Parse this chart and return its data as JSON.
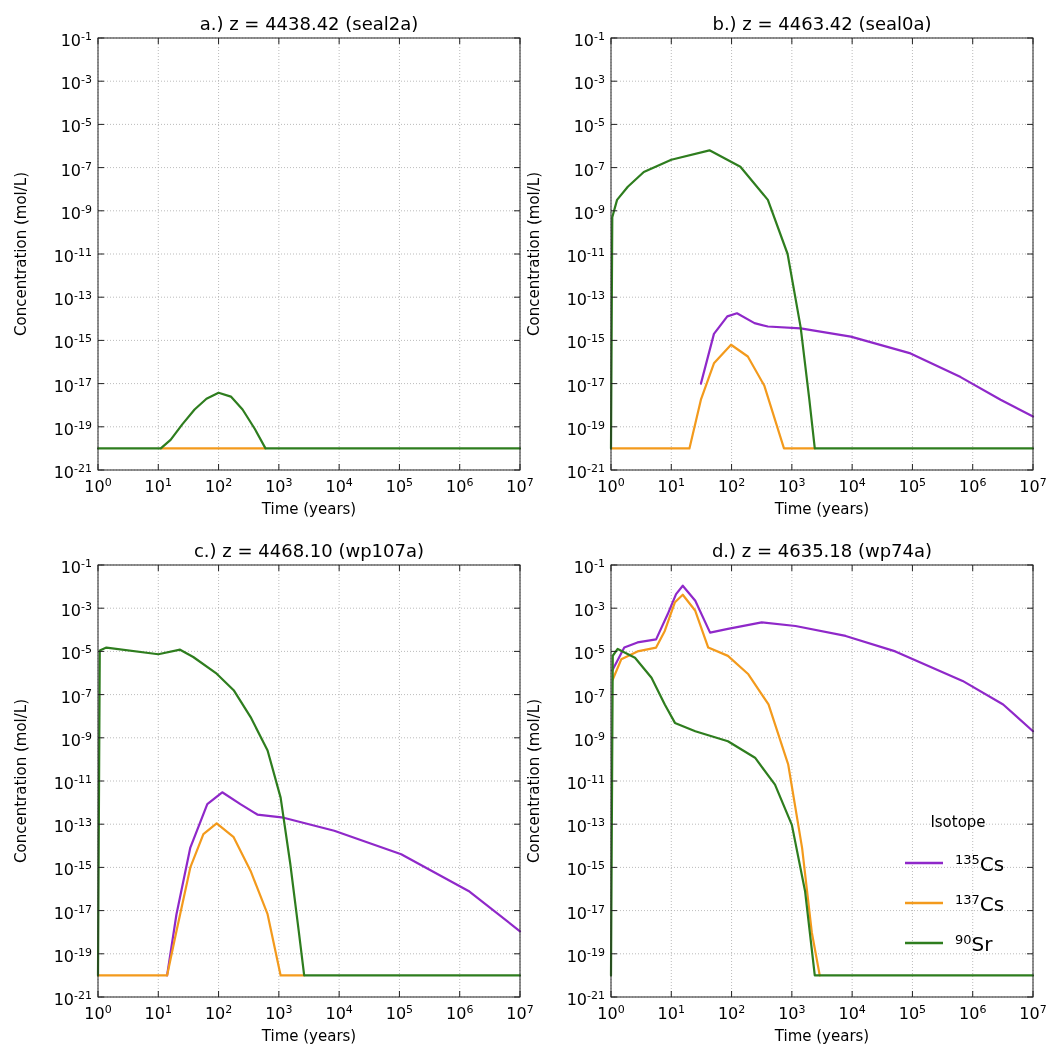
{
  "chart_data": [
    {
      "type": "line",
      "title": "a.) z = 4438.42 (seal2a)",
      "xlabel": "Time (years)",
      "ylabel": "Concentration (mol/L)",
      "log": "xy",
      "grid": true,
      "xlim": [
        1,
        10000000
      ],
      "ylim": [
        1e-21,
        0.1
      ],
      "xticks": [
        {
          "value": 1,
          "label": "10$^{0}$"
        },
        {
          "value": 10,
          "label": "10$^{1}$"
        },
        {
          "value": 100,
          "label": "10$^{2}$"
        },
        {
          "value": 1000,
          "label": "10$^{3}$"
        },
        {
          "value": 10000,
          "label": "10$^{4}$"
        },
        {
          "value": 100000,
          "label": "10$^{5}$"
        },
        {
          "value": 1000000,
          "label": "10$^{6}$"
        },
        {
          "value": 10000000,
          "label": "10$^{7}$"
        }
      ],
      "yticks": [
        {
          "value": 1e-21,
          "label": "10$^{-21}$"
        },
        {
          "value": 1e-19,
          "label": "10$^{-19}$"
        },
        {
          "value": 1e-17,
          "label": "10$^{-17}$"
        },
        {
          "value": 1e-15,
          "label": "10$^{-15}$"
        },
        {
          "value": 1e-13,
          "label": "10$^{-13}$"
        },
        {
          "value": 1e-11,
          "label": "10$^{-11}$"
        },
        {
          "value": 1e-09,
          "label": "10$^{-9}$"
        },
        {
          "value": 1e-07,
          "label": "10$^{-7}$"
        },
        {
          "value": 1e-05,
          "label": "10$^{-5}$"
        },
        {
          "value": 0.001,
          "label": "10$^{-3}$"
        },
        {
          "value": 0.1,
          "label": "10$^{-1}$"
        }
      ],
      "series": [
        {
          "color": "#f39a1c",
          "x": [
            11,
            600
          ],
          "values": [
            1e-20,
            1e-20
          ]
        },
        {
          "color": "#2e7d1e",
          "x": [
            1,
            11,
            16,
            25,
            40,
            63,
            100,
            160,
            250,
            400,
            600,
            10000000
          ],
          "values": [
            1e-20,
            1e-20,
            2.5e-20,
            1.3e-19,
            6.3e-19,
            2e-18,
            3.8e-18,
            2.5e-18,
            6.3e-19,
            7.9e-20,
            1e-20,
            1e-20
          ]
        }
      ]
    },
    {
      "type": "line",
      "title": "b.) z = 4463.42 (seal0a)",
      "xlabel": "Time (years)",
      "ylabel": "Concentration (mol/L)",
      "log": "xy",
      "grid": true,
      "xlim": [
        1,
        10000000
      ],
      "ylim": [
        1e-21,
        0.1
      ],
      "xticks": [
        {
          "value": 1,
          "label": "10$^{0}$"
        },
        {
          "value": 10,
          "label": "10$^{1}$"
        },
        {
          "value": 100,
          "label": "10$^{2}$"
        },
        {
          "value": 1000,
          "label": "10$^{3}$"
        },
        {
          "value": 10000,
          "label": "10$^{4}$"
        },
        {
          "value": 100000,
          "label": "10$^{5}$"
        },
        {
          "value": 1000000,
          "label": "10$^{6}$"
        },
        {
          "value": 10000000,
          "label": "10$^{7}$"
        }
      ],
      "yticks": [
        {
          "value": 1e-21,
          "label": "10$^{-21}$"
        },
        {
          "value": 1e-19,
          "label": "10$^{-19}$"
        },
        {
          "value": 1e-17,
          "label": "10$^{-17}$"
        },
        {
          "value": 1e-15,
          "label": "10$^{-15}$"
        },
        {
          "value": 1e-13,
          "label": "10$^{-13}$"
        },
        {
          "value": 1e-11,
          "label": "10$^{-11}$"
        },
        {
          "value": 1e-09,
          "label": "10$^{-9}$"
        },
        {
          "value": 1e-07,
          "label": "10$^{-7}$"
        },
        {
          "value": 1e-05,
          "label": "10$^{-5}$"
        },
        {
          "value": 0.001,
          "label": "10$^{-3}$"
        },
        {
          "value": 0.1,
          "label": "10$^{-1}$"
        }
      ],
      "series": [
        {
          "color": "#8f28c9",
          "x": [
            31,
            51,
            85,
            123,
            240,
            400,
            1400,
            9500,
            93000,
            630000,
            2900000,
            10000000
          ],
          "values": [
            1e-17,
            2e-15,
            1.3e-14,
            1.8e-14,
            6.3e-15,
            4.4e-15,
            3.6e-15,
            1.5e-15,
            2.5e-16,
            2e-17,
            1.8e-18,
            3e-19
          ]
        },
        {
          "color": "#f39a1c",
          "x": [
            1,
            20,
            31,
            51,
            98,
            186,
            350,
            740,
            2400
          ],
          "values": [
            1e-20,
            1e-20,
            1.8e-18,
            8.7e-17,
            6.3e-16,
            1.8e-16,
            7.9e-18,
            1e-20,
            1e-20
          ]
        },
        {
          "color": "#2e7d1e",
          "x": [
            1,
            1.05,
            1.26,
            1.9,
            3.5,
            10,
            43,
            140,
            400,
            850,
            1400,
            1950,
            2400,
            10000000
          ],
          "values": [
            1e-20,
            5e-10,
            3.2e-09,
            1.3e-08,
            6.3e-08,
            2.3e-07,
            6.3e-07,
            1.1e-07,
            3.2e-09,
            1e-11,
            4e-15,
            1.8e-18,
            1e-20,
            1e-20
          ]
        }
      ]
    },
    {
      "type": "line",
      "title": "c.) z = 4468.10 (wp107a)",
      "xlabel": "Time (years)",
      "ylabel": "Concentration (mol/L)",
      "log": "xy",
      "grid": true,
      "xlim": [
        1,
        10000000
      ],
      "ylim": [
        1e-21,
        0.1
      ],
      "xticks": [
        {
          "value": 1,
          "label": "10$^{0}$"
        },
        {
          "value": 10,
          "label": "10$^{1}$"
        },
        {
          "value": 100,
          "label": "10$^{2}$"
        },
        {
          "value": 1000,
          "label": "10$^{3}$"
        },
        {
          "value": 10000,
          "label": "10$^{4}$"
        },
        {
          "value": 100000,
          "label": "10$^{5}$"
        },
        {
          "value": 1000000,
          "label": "10$^{6}$"
        },
        {
          "value": 10000000,
          "label": "10$^{7}$"
        }
      ],
      "yticks": [
        {
          "value": 1e-21,
          "label": "10$^{-21}$"
        },
        {
          "value": 1e-19,
          "label": "10$^{-19}$"
        },
        {
          "value": 1e-17,
          "label": "10$^{-17}$"
        },
        {
          "value": 1e-15,
          "label": "10$^{-15}$"
        },
        {
          "value": 1e-13,
          "label": "10$^{-13}$"
        },
        {
          "value": 1e-11,
          "label": "10$^{-11}$"
        },
        {
          "value": 1e-09,
          "label": "10$^{-9}$"
        },
        {
          "value": 1e-07,
          "label": "10$^{-7}$"
        },
        {
          "value": 1e-05,
          "label": "10$^{-5}$"
        },
        {
          "value": 0.001,
          "label": "10$^{-3}$"
        },
        {
          "value": 0.1,
          "label": "10$^{-1}$"
        }
      ],
      "series": [
        {
          "color": "#8f28c9",
          "x": [
            14,
            20,
            34,
            65,
            115,
            230,
            440,
            1200,
            8300,
            107000,
            1400000,
            10000000
          ],
          "values": [
            1e-20,
            6.6e-18,
            8.3e-15,
            8.5e-13,
            3e-12,
            8.5e-13,
            2.8e-13,
            2e-13,
            5e-14,
            4.1e-15,
            8.1e-17,
            1.1e-18
          ]
        },
        {
          "color": "#f39a1c",
          "x": [
            1,
            14,
            20,
            34,
            56,
            93,
            178,
            340,
            650,
            1070,
            2630
          ],
          "values": [
            1e-20,
            1e-20,
            1.1e-18,
            1e-15,
            3.5e-14,
            1.1e-13,
            2.5e-14,
            6.9e-16,
            6.8e-18,
            1e-20,
            1e-20
          ]
        },
        {
          "color": "#2e7d1e",
          "x": [
            1,
            1.07,
            1.38,
            10,
            23,
            38,
            93,
            178,
            340,
            650,
            1070,
            1550,
            2140,
            2630,
            10000000
          ],
          "values": [
            1e-20,
            1.1e-05,
            1.5e-05,
            7.4e-06,
            1.2e-05,
            5.5e-06,
            9.3e-07,
            1.6e-07,
            9.1e-09,
            2.6e-10,
            1.7e-12,
            1.4e-15,
            1.1e-18,
            1e-20,
            1e-20
          ]
        }
      ]
    },
    {
      "type": "line",
      "title": "d.) z = 4635.18 (wp74a)",
      "xlabel": "Time (years)",
      "ylabel": "Concentration (mol/L)",
      "log": "xy",
      "grid": true,
      "legend": "bottom right",
      "legend_title": "Isotope",
      "xlim": [
        1,
        10000000
      ],
      "ylim": [
        1e-21,
        0.1
      ],
      "xticks": [
        {
          "value": 1,
          "label": "10$^{0}$"
        },
        {
          "value": 10,
          "label": "10$^{1}$"
        },
        {
          "value": 100,
          "label": "10$^{2}$"
        },
        {
          "value": 1000,
          "label": "10$^{3}$"
        },
        {
          "value": 10000,
          "label": "10$^{4}$"
        },
        {
          "value": 100000,
          "label": "10$^{5}$"
        },
        {
          "value": 1000000,
          "label": "10$^{6}$"
        },
        {
          "value": 10000000,
          "label": "10$^{7}$"
        }
      ],
      "yticks": [
        {
          "value": 1e-21,
          "label": "10$^{-21}$"
        },
        {
          "value": 1e-19,
          "label": "10$^{-19}$"
        },
        {
          "value": 1e-17,
          "label": "10$^{-17}$"
        },
        {
          "value": 1e-15,
          "label": "10$^{-15}$"
        },
        {
          "value": 1e-13,
          "label": "10$^{-13}$"
        },
        {
          "value": 1e-11,
          "label": "10$^{-11}$"
        },
        {
          "value": 1e-09,
          "label": "10$^{-9}$"
        },
        {
          "value": 1e-07,
          "label": "10$^{-7}$"
        },
        {
          "value": 1e-05,
          "label": "10$^{-5}$"
        },
        {
          "value": 0.001,
          "label": "10$^{-3}$"
        },
        {
          "value": 0.1,
          "label": "10$^{-1}$"
        }
      ],
      "series": [
        {
          "name": "$^{135}$Cs",
          "color": "#8f28c9",
          "x": [
            1.05,
            1.66,
            2.75,
            5.6,
            8.7,
            12,
            15.5,
            25,
            44,
            87,
            316,
            1150,
            7800,
            52000,
            680000,
            3200000,
            10000000
          ],
          "values": [
            1.3e-06,
            1.5e-05,
            2.6e-05,
            3.6e-05,
            0.00052,
            0.0045,
            0.011,
            0.0022,
            7.4e-05,
            0.00011,
            0.00022,
            0.00015,
            5.2e-05,
            1e-05,
            4.3e-07,
            3.5e-08,
            2e-09
          ]
        },
        {
          "name": "$^{137}$Cs",
          "color": "#f39a1c",
          "x": [
            1.07,
            1.48,
            2.75,
            5.6,
            7.8,
            11.5,
            15.5,
            25,
            41,
            87,
            190,
            410,
            870,
            1480,
            2140,
            2900
          ],
          "values": [
            5e-07,
            4.3e-06,
            1e-05,
            1.5e-05,
            8.9e-05,
            0.0019,
            0.0042,
            0.00076,
            1.5e-05,
            6.2e-06,
            8.7e-07,
            3.5e-08,
            5.8e-11,
            7.8e-15,
            1e-18,
            1e-20
          ]
        },
        {
          "name": "$^{90}$Sr",
          "color": "#2e7d1e",
          "x": [
            1,
            1.07,
            1.29,
            2.5,
            4.7,
            7.8,
            11.5,
            25,
            87,
            245,
            525,
            1000,
            1660,
            2400,
            10000000
          ],
          "values": [
            1e-20,
            6.3e-06,
            1.3e-05,
            5.1e-06,
            6e-07,
            3.5e-08,
            4.9e-09,
            2e-09,
            6.9e-10,
            1.2e-10,
            6.8e-12,
            9.3e-14,
            7.6e-17,
            1e-20,
            1e-20
          ]
        }
      ]
    }
  ]
}
